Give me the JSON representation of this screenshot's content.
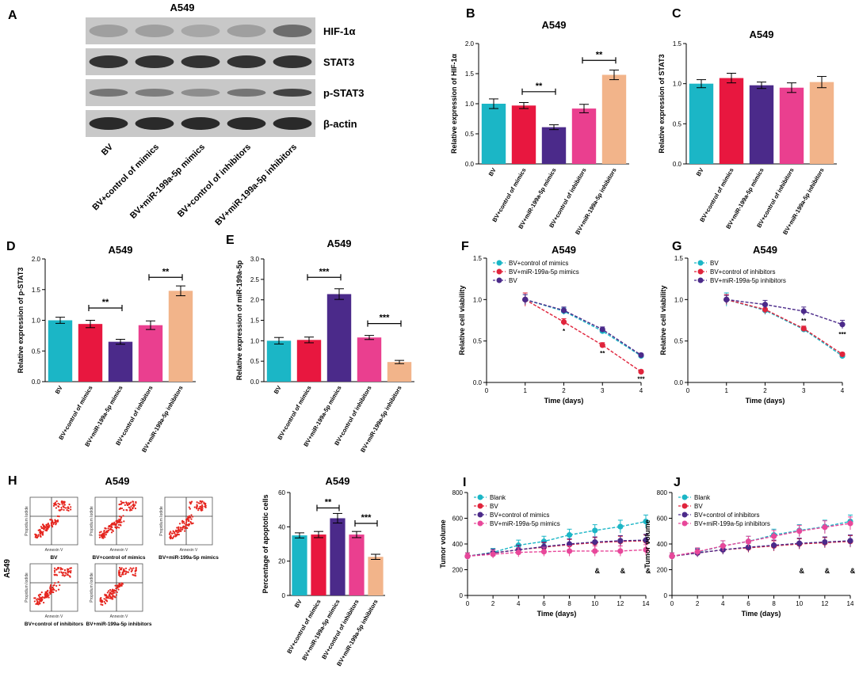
{
  "colors": {
    "bar_colors": [
      "#1BB6C6",
      "#E8173F",
      "#4B2A8A",
      "#EA3F8F",
      "#F2B48A"
    ],
    "cyan": "#1BB6C6",
    "red": "#E0243C",
    "purple": "#4B2A8A",
    "magenta": "#E8479A",
    "blot_bg": "#C8C8C8",
    "band": "#222222",
    "flow_dot": "#E5251E"
  },
  "blot": {
    "label": "A",
    "title": "A549",
    "rows": [
      "HIF-1α",
      "STAT3",
      "p-STAT3",
      "β-actin"
    ],
    "lanes": [
      "BV",
      "BV+control of mimics",
      "BV+miR-199a-5p mimics",
      "BV+control of inhibitors",
      "BV+miR-199a-5p inhibitors"
    ]
  },
  "flow": {
    "label": "H",
    "title": "A549",
    "side_label": "A549",
    "panel_labels": [
      "BV",
      "BV+control of mimics",
      "BV+miR-199a-5p mimics",
      "BV+control of inhibitors",
      "BV+miR-199a-5p inhibitors"
    ],
    "axis_small_x": "Annexin V",
    "axis_small_y": "Propidium Iodide"
  },
  "chart_data": [
    {
      "id": "B",
      "label": "B",
      "type": "bar",
      "title": "A549",
      "ylabel": "Relative expression of HIF-1α",
      "xlabel": "",
      "ylim": [
        0,
        2.0
      ],
      "yticks": [
        "0.0",
        "0.5",
        "1.0",
        "1.5",
        "2.0"
      ],
      "categories": [
        "BV",
        "BV+control of mimics",
        "BV+miR-199a-5p mimics",
        "BV+control of inhibitors",
        "BV+miR-199a-5p inhibitors"
      ],
      "values": [
        1.0,
        0.97,
        0.61,
        0.92,
        1.48
      ],
      "errors": [
        0.08,
        0.05,
        0.04,
        0.07,
        0.08
      ],
      "sig": [
        {
          "from": 1,
          "to": 2,
          "y": 1.2,
          "label": "**"
        },
        {
          "from": 3,
          "to": 4,
          "y": 1.72,
          "label": "**"
        }
      ]
    },
    {
      "id": "C",
      "label": "C",
      "type": "bar",
      "title": "A549",
      "ylabel": "Relative expression of STAT3",
      "xlabel": "",
      "ylim": [
        0,
        1.5
      ],
      "yticks": [
        "0.0",
        "0.5",
        "1.0",
        "1.5"
      ],
      "categories": [
        "BV",
        "BV+control of mimics",
        "BV+miR-199a-5p mimics",
        "BV+control of inhibitors",
        "BV+miR-199a-5p inhibitors"
      ],
      "values": [
        1.0,
        1.07,
        0.98,
        0.95,
        1.02
      ],
      "errors": [
        0.05,
        0.06,
        0.04,
        0.06,
        0.07
      ],
      "sig": []
    },
    {
      "id": "D",
      "label": "D",
      "type": "bar",
      "title": "A549",
      "ylabel": "Relative expression of p-STAT3",
      "xlabel": "",
      "ylim": [
        0,
        2.0
      ],
      "yticks": [
        "0.0",
        "0.5",
        "1.0",
        "1.5",
        "2.0"
      ],
      "categories": [
        "BV",
        "BV+control of mimics",
        "BV+miR-199a-5p mimics",
        "BV+control of inhibitors",
        "BV+miR-199a-5p inhibitors"
      ],
      "values": [
        1.0,
        0.94,
        0.65,
        0.92,
        1.48
      ],
      "errors": [
        0.05,
        0.06,
        0.04,
        0.07,
        0.08
      ],
      "sig": [
        {
          "from": 1,
          "to": 2,
          "y": 1.2,
          "label": "**"
        },
        {
          "from": 3,
          "to": 4,
          "y": 1.7,
          "label": "**"
        }
      ]
    },
    {
      "id": "E",
      "label": "E",
      "type": "bar",
      "title": "A549",
      "ylabel": "Relative expression of miR-199a-5p",
      "xlabel": "",
      "ylim": [
        0,
        3.0
      ],
      "yticks": [
        "0.0",
        "0.5",
        "1.0",
        "1.5",
        "2.0",
        "2.5",
        "3.0"
      ],
      "categories": [
        "BV",
        "BV+control of mimics",
        "BV+miR-199a-5p mimics",
        "BV+control of inhibitors",
        "BV+miR-199a-5p inhibitors"
      ],
      "values": [
        1.0,
        1.02,
        2.14,
        1.08,
        0.48
      ],
      "errors": [
        0.08,
        0.07,
        0.13,
        0.05,
        0.04
      ],
      "sig": [
        {
          "from": 1,
          "to": 2,
          "y": 2.55,
          "label": "***"
        },
        {
          "from": 3,
          "to": 4,
          "y": 1.42,
          "label": "***"
        }
      ]
    },
    {
      "id": "F",
      "label": "F",
      "type": "line",
      "title": "A549",
      "ylabel": "Relative cell viability",
      "xlabel": "Time (days)",
      "xlim": [
        0,
        4
      ],
      "ylim": [
        0,
        1.5
      ],
      "xticks": [
        "0",
        "1",
        "2",
        "3",
        "4"
      ],
      "yticks": [
        "0.0",
        "0.5",
        "1.0",
        "1.5"
      ],
      "x": [
        1,
        2,
        3,
        4
      ],
      "series": [
        {
          "name": "BV+control of mimics",
          "color": "#1BB6C6",
          "values": [
            1.0,
            0.86,
            0.62,
            0.32
          ],
          "errors": [
            0.06,
            0.04,
            0.03,
            0.02
          ],
          "marks": [
            "",
            "",
            "",
            ""
          ]
        },
        {
          "name": "BV+miR-199a-5p mimics",
          "color": "#E0243C",
          "values": [
            1.0,
            0.73,
            0.45,
            0.13
          ],
          "errors": [
            0.08,
            0.04,
            0.03,
            0.02
          ],
          "marks": [
            "",
            "*",
            "**",
            "***"
          ]
        },
        {
          "name": "BV",
          "color": "#4B2A8A",
          "values": [
            1.0,
            0.87,
            0.64,
            0.33
          ],
          "errors": [
            0.06,
            0.04,
            0.03,
            0.02
          ],
          "marks": [
            "",
            "",
            "",
            ""
          ]
        }
      ]
    },
    {
      "id": "G",
      "label": "G",
      "type": "line",
      "title": "A549",
      "ylabel": "Relative cell viability",
      "xlabel": "Time (days)",
      "xlim": [
        0,
        4
      ],
      "ylim": [
        0,
        1.5
      ],
      "xticks": [
        "0",
        "1",
        "2",
        "3",
        "4"
      ],
      "yticks": [
        "0.0",
        "0.5",
        "1.0",
        "1.5"
      ],
      "x": [
        1,
        2,
        3,
        4
      ],
      "series": [
        {
          "name": "BV",
          "color": "#1BB6C6",
          "values": [
            1.0,
            0.87,
            0.64,
            0.32
          ],
          "errors": [
            0.08,
            0.05,
            0.03,
            0.02
          ],
          "marks": [
            "",
            "",
            "",
            ""
          ]
        },
        {
          "name": "BV+control of inhibitors",
          "color": "#E0243C",
          "values": [
            1.0,
            0.88,
            0.65,
            0.34
          ],
          "errors": [
            0.06,
            0.05,
            0.03,
            0.02
          ],
          "marks": [
            "",
            "",
            "",
            ""
          ]
        },
        {
          "name": "BV+miR-199a-5p inhibitors",
          "color": "#4B2A8A",
          "values": [
            1.0,
            0.94,
            0.86,
            0.7
          ],
          "errors": [
            0.05,
            0.05,
            0.05,
            0.05
          ],
          "marks": [
            "",
            "",
            "**",
            "***"
          ]
        }
      ]
    },
    {
      "id": "H2",
      "label": "",
      "type": "bar",
      "title": "A549",
      "ylabel": "Percentage of apoptotic cells",
      "xlabel": "",
      "ylim": [
        0,
        60
      ],
      "yticks": [
        "0",
        "20",
        "40",
        "60"
      ],
      "categories": [
        "BV",
        "BV+control of mimics",
        "BV+miR-199a-5p mimics",
        "BV+control of inhibitors",
        "BV+miR-199a-5p inhibitors"
      ],
      "values": [
        35.0,
        35.5,
        45.0,
        35.5,
        22.5
      ],
      "errors": [
        1.5,
        1.8,
        2.8,
        1.8,
        1.5
      ],
      "sig": [
        {
          "from": 1,
          "to": 2,
          "y": 51,
          "label": "**"
        },
        {
          "from": 3,
          "to": 4,
          "y": 42,
          "label": "***"
        }
      ]
    },
    {
      "id": "I",
      "label": "I",
      "type": "line",
      "title": "",
      "ylabel": "Tumor volume",
      "xlabel": "Time (days)",
      "xlim": [
        0,
        14
      ],
      "ylim": [
        0,
        800
      ],
      "xticks": [
        "0",
        "2",
        "4",
        "6",
        "8",
        "10",
        "12",
        "14"
      ],
      "yticks": [
        "0",
        "200",
        "400",
        "600",
        "800"
      ],
      "x": [
        0,
        2,
        4,
        6,
        8,
        10,
        12,
        14
      ],
      "series": [
        {
          "name": "Blank",
          "color": "#1BB6C6",
          "values": [
            305,
            335,
            390,
            420,
            470,
            505,
            535,
            575
          ],
          "errors": [
            25,
            30,
            40,
            40,
            45,
            45,
            50,
            50
          ],
          "marks": [
            "",
            "",
            "",
            "",
            "",
            "",
            "",
            ""
          ]
        },
        {
          "name": "BV",
          "color": "#E0243C",
          "values": [
            305,
            330,
            355,
            375,
            395,
            410,
            420,
            425
          ],
          "errors": [
            25,
            30,
            35,
            35,
            40,
            40,
            40,
            45
          ],
          "marks": [
            "",
            "",
            "",
            "",
            "",
            "",
            "",
            ""
          ]
        },
        {
          "name": "BV+control of mimics",
          "color": "#4B2A8A",
          "values": [
            305,
            330,
            355,
            380,
            400,
            415,
            425,
            430
          ],
          "errors": [
            25,
            30,
            35,
            35,
            40,
            40,
            40,
            45
          ],
          "marks": [
            "",
            "",
            "",
            "",
            "",
            "",
            "",
            ""
          ]
        },
        {
          "name": "BV+miR-199a-5p mimics",
          "color": "#E8479A",
          "values": [
            305,
            320,
            335,
            340,
            345,
            345,
            345,
            355
          ],
          "errors": [
            25,
            30,
            35,
            35,
            40,
            40,
            40,
            40
          ],
          "marks": [
            "",
            "",
            "",
            "",
            "",
            "&",
            "&",
            "&"
          ]
        }
      ]
    },
    {
      "id": "J",
      "label": "J",
      "type": "line",
      "title": "",
      "ylabel": "Tumor volume",
      "xlabel": "Time (days)",
      "xlim": [
        0,
        14
      ],
      "ylim": [
        0,
        800
      ],
      "xticks": [
        "0",
        "2",
        "4",
        "6",
        "8",
        "10",
        "12",
        "14"
      ],
      "yticks": [
        "0",
        "200",
        "400",
        "600",
        "800"
      ],
      "x": [
        0,
        2,
        4,
        6,
        8,
        10,
        12,
        14
      ],
      "series": [
        {
          "name": "Blank",
          "color": "#1BB6C6",
          "values": [
            305,
            335,
            385,
            420,
            470,
            505,
            535,
            575
          ],
          "errors": [
            25,
            30,
            40,
            40,
            45,
            45,
            50,
            50
          ],
          "marks": [
            "",
            "",
            "",
            "",
            "",
            "",
            "",
            ""
          ]
        },
        {
          "name": "BV",
          "color": "#E0243C",
          "values": [
            305,
            330,
            355,
            370,
            385,
            400,
            410,
            420
          ],
          "errors": [
            25,
            30,
            35,
            35,
            40,
            40,
            40,
            45
          ],
          "marks": [
            "",
            "",
            "",
            "",
            "",
            "",
            "",
            ""
          ]
        },
        {
          "name": "BV+control of inhibitors",
          "color": "#4B2A8A",
          "values": [
            305,
            330,
            355,
            375,
            390,
            405,
            415,
            425
          ],
          "errors": [
            25,
            30,
            35,
            35,
            40,
            40,
            40,
            45
          ],
          "marks": [
            "",
            "",
            "",
            "",
            "",
            "",
            "",
            ""
          ]
        },
        {
          "name": "BV+miR-199a-5p inhibitors",
          "color": "#E8479A",
          "values": [
            305,
            340,
            385,
            420,
            460,
            500,
            530,
            560
          ],
          "errors": [
            25,
            30,
            40,
            40,
            45,
            45,
            50,
            50
          ],
          "marks": [
            "",
            "",
            "",
            "",
            "",
            "&",
            "&",
            "&"
          ]
        }
      ]
    }
  ]
}
